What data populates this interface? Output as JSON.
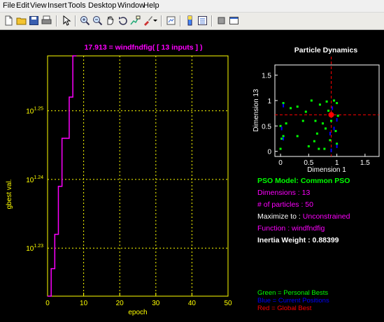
{
  "menubar": {
    "items": [
      "File",
      "Edit",
      "View",
      "Insert",
      "Tools",
      "Desktop",
      "Window",
      "Help"
    ]
  },
  "toolbar": {
    "icons": [
      "new-file-icon",
      "open-folder-icon",
      "save-icon",
      "print-icon",
      "pointer-icon",
      "zoom-in-icon",
      "zoom-out-icon",
      "pan-icon",
      "rotate-icon",
      "data-cursor-icon",
      "brush-icon",
      "link-plot-icon",
      "colorbar-icon",
      "legend-icon",
      "hide-plot-tools-icon",
      "show-plot-tools-icon"
    ]
  },
  "colors": {
    "magenta": "#ff00ff",
    "yellow": "#ffff00",
    "green": "#00ff00",
    "blue": "#0000ff",
    "red": "#ff0000",
    "white": "#ffffff"
  },
  "left_plot": {
    "title": "17.913 = windfndfig( [ 13 inputs ] )",
    "xlabel": "epoch",
    "ylabel": "gbest val.",
    "xticks": [
      "0",
      "10",
      "20",
      "30",
      "40",
      "50"
    ],
    "yticks": [
      "10^1.23",
      "10^1.24",
      "10^1.25"
    ],
    "yscale": "log"
  },
  "right_plot": {
    "title": "Particle Dynamics",
    "xlabel": "Dimension 1",
    "ylabel": "Dimension 13",
    "xticks": [
      "0",
      "0.5",
      "1",
      "1.5"
    ],
    "yticks": [
      "0",
      "0.5",
      "1",
      "1.5"
    ]
  },
  "info": {
    "model": "PSO Model: Common PSO",
    "dimensions": "Dimensions : 13",
    "particles": "# of particles : 50",
    "maximize_label": "Maximize to : ",
    "maximize_value": "Unconstrained",
    "function": "Function : windfndfig",
    "inertia": "Inertia Weight : 0.88399"
  },
  "legend": {
    "green": "Green = Personal Bests",
    "blue": "Blue = Current Positions",
    "red": "Red = Global Best"
  },
  "chart_data": [
    {
      "type": "line",
      "title": "17.913 = windfndfig( [ 13 inputs ] )",
      "xlabel": "epoch",
      "ylabel": "gbest val.",
      "xlim": [
        0,
        50
      ],
      "ylim_log10": [
        1.223,
        1.258
      ],
      "yscale": "log",
      "grid": true,
      "series": [
        {
          "x": [
            0,
            1,
            1,
            2,
            2,
            3,
            3,
            4,
            4,
            5,
            5,
            6,
            6,
            7,
            7,
            8
          ],
          "log10_y": [
            1.222,
            1.222,
            1.227,
            1.227,
            1.232,
            1.232,
            1.239,
            1.239,
            1.246,
            1.246,
            1.246,
            1.246,
            1.252,
            1.252,
            1.258,
            1.258
          ]
        }
      ]
    },
    {
      "type": "scatter",
      "title": "Particle Dynamics",
      "xlabel": "Dimension 1",
      "ylabel": "Dimension 13",
      "xlim": [
        -0.1,
        1.75
      ],
      "ylim": [
        -0.1,
        1.7
      ],
      "grid": false,
      "series": [
        {
          "name": "Personal Bests",
          "color": "#00ff00",
          "x": [
            0,
            0,
            0.02,
            0.05,
            0.1,
            0.18,
            0.3,
            0.45,
            0.55,
            0.6,
            0.62,
            0.65,
            0.7,
            0.75,
            0.8,
            0.82,
            0.85,
            0.88,
            0.9,
            0.92,
            0.95,
            0.98,
            1,
            1,
            1.02,
            0.3,
            0.5,
            0.68,
            0.78,
            0.05,
            0.4
          ],
          "y": [
            0.05,
            0.5,
            0.25,
            0.3,
            0.55,
            0.85,
            0.88,
            0.78,
            1,
            0.2,
            0.6,
            0.35,
            0.92,
            0.55,
            0.45,
            0.98,
            0.8,
            0.22,
            0.6,
            0.72,
            1,
            0.4,
            0.15,
            0.95,
            0.7,
            0.3,
            0.1,
            0.05,
            0.05,
            0.95,
            0.6
          ]
        },
        {
          "name": "Current Positions",
          "color": "#0000ff",
          "x": [
            0.02,
            0.05,
            0.88,
            0.92,
            1,
            1,
            0.05,
            0.95,
            0.9
          ],
          "y": [
            0.45,
            0.9,
            0.35,
            0.85,
            0.62,
            0.1,
            0.25,
            0.45,
            0.02
          ]
        },
        {
          "name": "Global Best",
          "color": "#ff0000",
          "x": [
            0.9
          ],
          "y": [
            0.72
          ]
        }
      ]
    }
  ]
}
